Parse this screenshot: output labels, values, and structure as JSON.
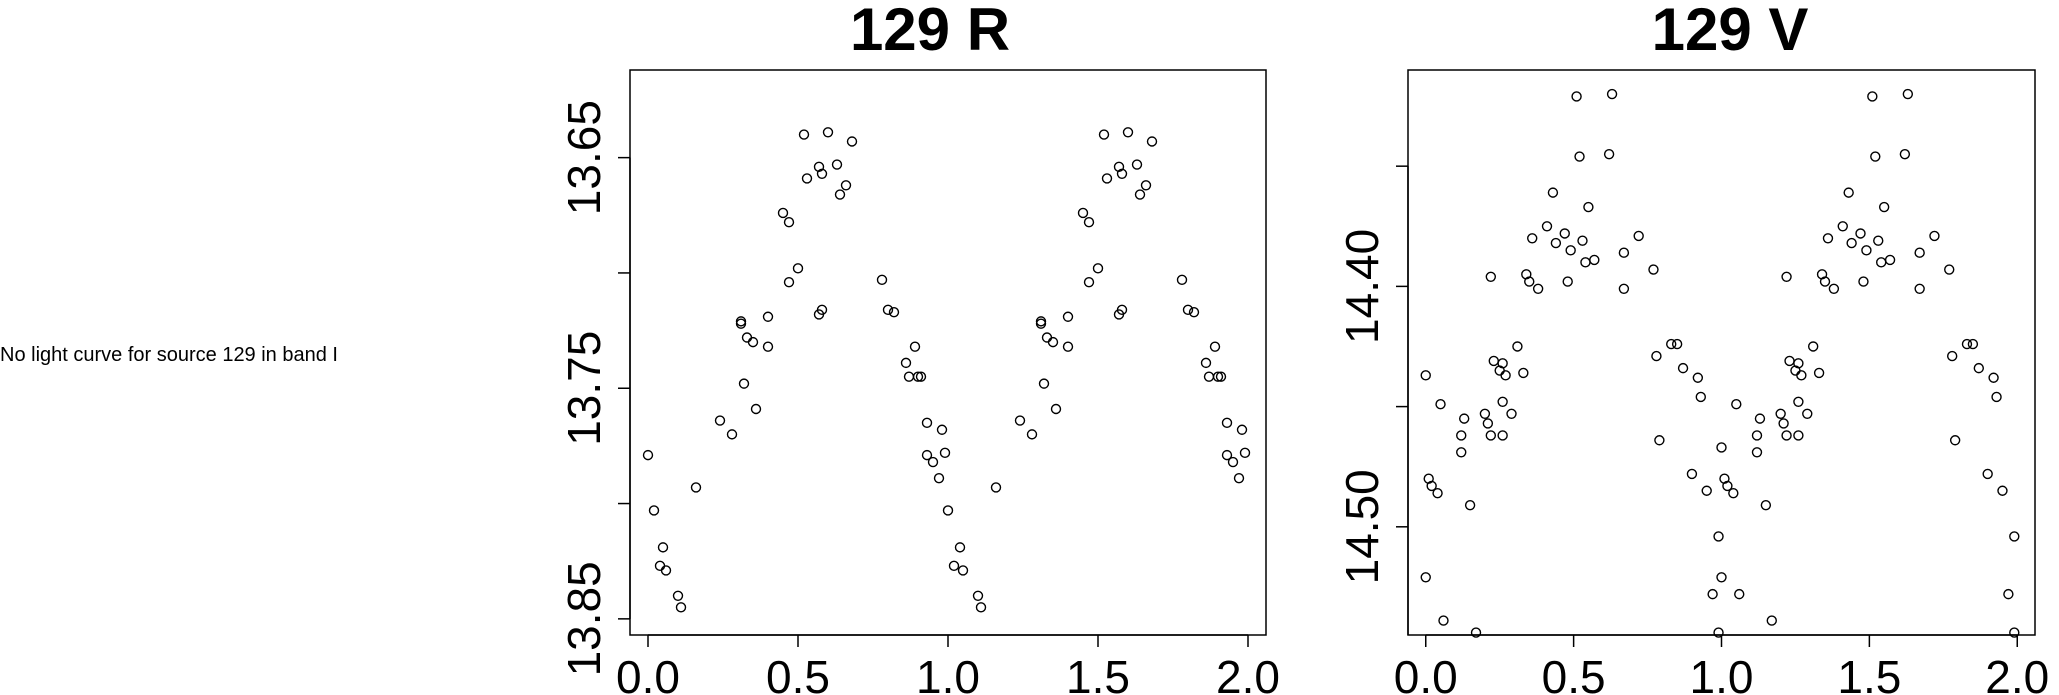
{
  "note": "No light curve for source 129 in band I",
  "chart_data": [
    {
      "type": "scatter",
      "title": "129 R",
      "xlabel": "",
      "ylabel": "",
      "xlim": [
        -0.06,
        2.06
      ],
      "ylim": [
        13.857,
        13.612
      ],
      "y_inverted": true,
      "x_ticks": [
        0,
        0.5,
        1,
        1.5,
        2
      ],
      "x_tick_labels": [
        "0.0",
        "0.5",
        "1.0",
        "1.5",
        "2.0"
      ],
      "y_ticks": [
        13.65,
        13.7,
        13.75,
        13.8,
        13.85
      ],
      "y_tick_labels": [
        "13.65",
        "",
        "13.75",
        "",
        "13.85"
      ],
      "grid": false,
      "marker": "open-circle",
      "series": [
        {
          "points": [
            [
              0.0,
              13.779
            ],
            [
              0.02,
              13.803
            ],
            [
              0.04,
              13.827
            ],
            [
              0.05,
              13.819
            ],
            [
              0.06,
              13.829
            ],
            [
              0.1,
              13.84
            ],
            [
              0.11,
              13.845
            ],
            [
              0.16,
              13.793
            ],
            [
              0.24,
              13.764
            ],
            [
              0.28,
              13.77
            ],
            [
              0.31,
              13.722
            ],
            [
              0.31,
              13.721
            ],
            [
              0.32,
              13.748
            ],
            [
              0.33,
              13.728
            ],
            [
              0.35,
              13.73
            ],
            [
              0.36,
              13.759
            ],
            [
              0.4,
              13.719
            ],
            [
              0.4,
              13.732
            ],
            [
              0.45,
              13.674
            ],
            [
              0.47,
              13.678
            ],
            [
              0.47,
              13.704
            ],
            [
              0.5,
              13.698
            ],
            [
              0.52,
              13.64
            ],
            [
              0.53,
              13.659
            ],
            [
              0.57,
              13.654
            ],
            [
              0.57,
              13.718
            ],
            [
              0.58,
              13.716
            ],
            [
              0.58,
              13.657
            ],
            [
              0.6,
              13.639
            ],
            [
              0.63,
              13.653
            ],
            [
              0.64,
              13.666
            ],
            [
              0.66,
              13.662
            ],
            [
              0.68,
              13.643
            ],
            [
              0.78,
              13.703
            ],
            [
              0.8,
              13.716
            ],
            [
              0.82,
              13.717
            ],
            [
              0.86,
              13.739
            ],
            [
              0.87,
              13.745
            ],
            [
              0.89,
              13.732
            ],
            [
              0.9,
              13.745
            ],
            [
              0.91,
              13.745
            ],
            [
              0.93,
              13.765
            ],
            [
              0.93,
              13.779
            ],
            [
              0.95,
              13.782
            ],
            [
              0.97,
              13.789
            ],
            [
              0.98,
              13.768
            ],
            [
              0.99,
              13.778
            ],
            [
              1.0,
              13.803
            ],
            [
              1.02,
              13.827
            ],
            [
              1.04,
              13.819
            ],
            [
              1.05,
              13.829
            ],
            [
              1.1,
              13.84
            ],
            [
              1.11,
              13.845
            ],
            [
              1.16,
              13.793
            ],
            [
              1.24,
              13.764
            ],
            [
              1.28,
              13.77
            ],
            [
              1.31,
              13.722
            ],
            [
              1.31,
              13.721
            ],
            [
              1.32,
              13.748
            ],
            [
              1.33,
              13.728
            ],
            [
              1.35,
              13.73
            ],
            [
              1.36,
              13.759
            ],
            [
              1.4,
              13.719
            ],
            [
              1.4,
              13.732
            ],
            [
              1.45,
              13.674
            ],
            [
              1.47,
              13.678
            ],
            [
              1.47,
              13.704
            ],
            [
              1.5,
              13.698
            ],
            [
              1.52,
              13.64
            ],
            [
              1.53,
              13.659
            ],
            [
              1.57,
              13.654
            ],
            [
              1.57,
              13.718
            ],
            [
              1.58,
              13.716
            ],
            [
              1.58,
              13.657
            ],
            [
              1.6,
              13.639
            ],
            [
              1.63,
              13.653
            ],
            [
              1.64,
              13.666
            ],
            [
              1.66,
              13.662
            ],
            [
              1.68,
              13.643
            ],
            [
              1.78,
              13.703
            ],
            [
              1.8,
              13.716
            ],
            [
              1.82,
              13.717
            ],
            [
              1.86,
              13.739
            ],
            [
              1.87,
              13.745
            ],
            [
              1.89,
              13.732
            ],
            [
              1.9,
              13.745
            ],
            [
              1.91,
              13.745
            ],
            [
              1.93,
              13.765
            ],
            [
              1.93,
              13.779
            ],
            [
              1.95,
              13.782
            ],
            [
              1.97,
              13.789
            ],
            [
              1.98,
              13.768
            ],
            [
              1.99,
              13.778
            ]
          ]
        }
      ]
    },
    {
      "type": "scatter",
      "title": "129 V",
      "xlabel": "",
      "ylabel": "",
      "xlim": [
        -0.06,
        2.06
      ],
      "ylim": [
        14.545,
        14.31
      ],
      "y_inverted": true,
      "x_ticks": [
        0,
        0.5,
        1,
        1.5,
        2
      ],
      "x_tick_labels": [
        "0.0",
        "0.5",
        "1.0",
        "1.5",
        "2.0"
      ],
      "y_ticks": [
        14.35,
        14.4,
        14.45,
        14.5,
        14.55
      ],
      "y_tick_labels": [
        "",
        "14.40",
        "",
        "14.50",
        ""
      ],
      "grid": false,
      "marker": "open-circle",
      "series": [
        {
          "points": [
            [
              0.0,
              14.437
            ],
            [
              0.0,
              14.521
            ],
            [
              0.01,
              14.48
            ],
            [
              0.02,
              14.483
            ],
            [
              0.04,
              14.486
            ],
            [
              0.05,
              14.449
            ],
            [
              0.06,
              14.539
            ],
            [
              0.12,
              14.469
            ],
            [
              0.12,
              14.462
            ],
            [
              0.13,
              14.455
            ],
            [
              0.15,
              14.491
            ],
            [
              0.17,
              14.544
            ],
            [
              0.2,
              14.453
            ],
            [
              0.21,
              14.457
            ],
            [
              0.22,
              14.396
            ],
            [
              0.22,
              14.462
            ],
            [
              0.23,
              14.431
            ],
            [
              0.25,
              14.435
            ],
            [
              0.26,
              14.448
            ],
            [
              0.26,
              14.462
            ],
            [
              0.26,
              14.432
            ],
            [
              0.27,
              14.437
            ],
            [
              0.29,
              14.453
            ],
            [
              0.31,
              14.425
            ],
            [
              0.33,
              14.436
            ],
            [
              0.34,
              14.395
            ],
            [
              0.35,
              14.398
            ],
            [
              0.36,
              14.38
            ],
            [
              0.38,
              14.401
            ],
            [
              0.41,
              14.375
            ],
            [
              0.43,
              14.361
            ],
            [
              0.44,
              14.382
            ],
            [
              0.47,
              14.378
            ],
            [
              0.48,
              14.398
            ],
            [
              0.49,
              14.385
            ],
            [
              0.51,
              14.321
            ],
            [
              0.52,
              14.346
            ],
            [
              0.53,
              14.381
            ],
            [
              0.54,
              14.39
            ],
            [
              0.55,
              14.367
            ],
            [
              0.57,
              14.389
            ],
            [
              0.62,
              14.345
            ],
            [
              0.63,
              14.32
            ],
            [
              0.67,
              14.386
            ],
            [
              0.67,
              14.401
            ],
            [
              0.72,
              14.379
            ],
            [
              0.77,
              14.393
            ],
            [
              0.78,
              14.429
            ],
            [
              0.79,
              14.464
            ],
            [
              0.83,
              14.424
            ],
            [
              0.85,
              14.424
            ],
            [
              0.87,
              14.434
            ],
            [
              0.9,
              14.478
            ],
            [
              0.92,
              14.438
            ],
            [
              0.93,
              14.446
            ],
            [
              0.95,
              14.485
            ],
            [
              0.97,
              14.528
            ],
            [
              0.99,
              14.544
            ],
            [
              0.99,
              14.504
            ],
            [
              1.0,
              14.467
            ],
            [
              1.0,
              14.521
            ],
            [
              1.01,
              14.48
            ],
            [
              1.02,
              14.483
            ],
            [
              1.04,
              14.486
            ],
            [
              1.05,
              14.449
            ],
            [
              1.06,
              14.528
            ],
            [
              1.12,
              14.469
            ],
            [
              1.12,
              14.462
            ],
            [
              1.13,
              14.455
            ],
            [
              1.15,
              14.491
            ],
            [
              1.17,
              14.539
            ],
            [
              1.2,
              14.453
            ],
            [
              1.21,
              14.457
            ],
            [
              1.22,
              14.396
            ],
            [
              1.22,
              14.462
            ],
            [
              1.23,
              14.431
            ],
            [
              1.25,
              14.435
            ],
            [
              1.26,
              14.448
            ],
            [
              1.26,
              14.462
            ],
            [
              1.26,
              14.432
            ],
            [
              1.27,
              14.437
            ],
            [
              1.29,
              14.453
            ],
            [
              1.31,
              14.425
            ],
            [
              1.33,
              14.436
            ],
            [
              1.34,
              14.395
            ],
            [
              1.35,
              14.398
            ],
            [
              1.36,
              14.38
            ],
            [
              1.38,
              14.401
            ],
            [
              1.41,
              14.375
            ],
            [
              1.43,
              14.361
            ],
            [
              1.44,
              14.382
            ],
            [
              1.47,
              14.378
            ],
            [
              1.48,
              14.398
            ],
            [
              1.49,
              14.385
            ],
            [
              1.51,
              14.321
            ],
            [
              1.52,
              14.346
            ],
            [
              1.53,
              14.381
            ],
            [
              1.54,
              14.39
            ],
            [
              1.55,
              14.367
            ],
            [
              1.57,
              14.389
            ],
            [
              1.62,
              14.345
            ],
            [
              1.63,
              14.32
            ],
            [
              1.67,
              14.386
            ],
            [
              1.67,
              14.401
            ],
            [
              1.72,
              14.379
            ],
            [
              1.77,
              14.393
            ],
            [
              1.78,
              14.429
            ],
            [
              1.79,
              14.464
            ],
            [
              1.83,
              14.424
            ],
            [
              1.85,
              14.424
            ],
            [
              1.87,
              14.434
            ],
            [
              1.9,
              14.478
            ],
            [
              1.92,
              14.438
            ],
            [
              1.93,
              14.446
            ],
            [
              1.95,
              14.485
            ],
            [
              1.97,
              14.528
            ],
            [
              1.99,
              14.544
            ],
            [
              1.99,
              14.504
            ]
          ]
        }
      ]
    }
  ]
}
